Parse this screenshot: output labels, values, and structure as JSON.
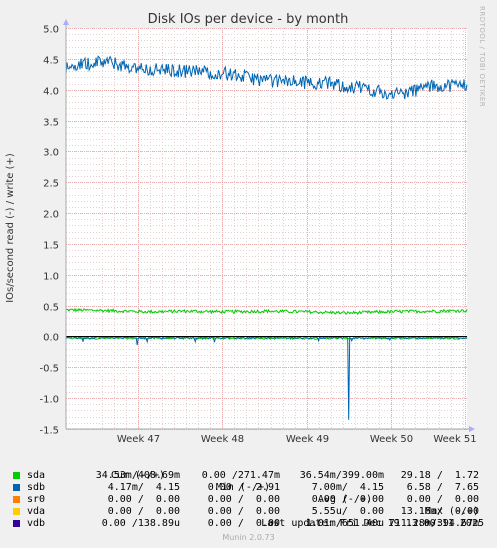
{
  "chart_data": {
    "type": "line",
    "title": "Disk IOs per device - by month",
    "ylabel": "IOs/second read (-) / write (+)",
    "ylim": [
      -1.5,
      5.0
    ],
    "yticks": [
      "5.0",
      "4.5",
      "4.0",
      "3.5",
      "3.0",
      "2.5",
      "2.0",
      "1.5",
      "1.0",
      "0.5",
      "0.0",
      "-0.5",
      "-1.0",
      "-1.5"
    ],
    "xtick_labels": [
      "Week 47",
      "Week 48",
      "Week 49",
      "Week 50",
      "Week 51"
    ],
    "grid": true,
    "series": [
      {
        "name": "sda",
        "color": "#00cc00",
        "write_profile": [
          [
            0,
            0.43
          ],
          [
            0.1,
            0.42
          ],
          [
            0.2,
            0.4
          ],
          [
            0.3,
            0.41
          ],
          [
            0.4,
            0.4
          ],
          [
            0.5,
            0.41
          ],
          [
            0.6,
            0.4
          ],
          [
            0.7,
            0.38
          ],
          [
            0.8,
            0.4
          ],
          [
            0.9,
            0.41
          ],
          [
            1,
            0.42
          ]
        ],
        "read_profile": [
          [
            0,
            -0.03
          ],
          [
            0.5,
            -0.03
          ],
          [
            1,
            -0.03
          ]
        ]
      },
      {
        "name": "sdb",
        "color": "#0066b3",
        "write_profile": [
          [
            0,
            4.35
          ],
          [
            0.05,
            4.42
          ],
          [
            0.1,
            4.45
          ],
          [
            0.15,
            4.38
          ],
          [
            0.2,
            4.33
          ],
          [
            0.3,
            4.3
          ],
          [
            0.38,
            4.28
          ],
          [
            0.45,
            4.2
          ],
          [
            0.5,
            4.15
          ],
          [
            0.55,
            4.13
          ],
          [
            0.6,
            4.12
          ],
          [
            0.65,
            4.1
          ],
          [
            0.7,
            4.05
          ],
          [
            0.75,
            4.03
          ],
          [
            0.8,
            3.92
          ],
          [
            0.85,
            3.95
          ],
          [
            0.9,
            4.05
          ],
          [
            0.95,
            4.07
          ],
          [
            1,
            4.08
          ]
        ],
        "read_profile": [
          [
            0,
            -0.02
          ],
          [
            1,
            -0.02
          ]
        ],
        "spike": {
          "x": 0.705,
          "y": -1.35
        }
      },
      {
        "name": "sr0",
        "color": "#ff8000"
      },
      {
        "name": "vda",
        "color": "#ffcc00"
      },
      {
        "name": "vdb",
        "color": "#330099"
      }
    ]
  },
  "legend": {
    "headers": [
      "Cur (-/+)",
      "Min (-/+)",
      "Avg (-/+)",
      "Max (-/+)"
    ],
    "rows": [
      {
        "name": "sda",
        "color": "#00cc00",
        "cur": "34.53m/408.69m",
        "min": "0.00 /271.47m",
        "avg": "36.54m/399.00m",
        "max": "29.18 /  1.72"
      },
      {
        "name": "sdb",
        "color": "#0066b3",
        "cur": "4.17m/  4.15",
        "min": "0.00 /  2.91",
        "avg": "7.00m/  4.15",
        "max": "6.58 /  7.65"
      },
      {
        "name": "sr0",
        "color": "#ff8000",
        "cur": "0.00 /  0.00",
        "min": "0.00 /  0.00",
        "avg": "0.00 /  0.00",
        "max": "0.00 /  0.00"
      },
      {
        "name": "vda",
        "color": "#ffcc00",
        "cur": "0.00 /  0.00",
        "min": "0.00 /  0.00",
        "avg": "5.55u/  0.00",
        "max": "13.16m/  0.00"
      },
      {
        "name": "vdb",
        "color": "#330099",
        "cur": "0.00 /138.89u",
        "min": "0.00 /  0.00",
        "avg": "1.01m/651.40u",
        "max": "711.28m/394.67m"
      }
    ]
  },
  "last_update": "Last update: Fri Dec 19 13:00:11 2025",
  "footer": "Munin 2.0.73",
  "side_text": "RRDTOOL / TOBI OETIKER"
}
